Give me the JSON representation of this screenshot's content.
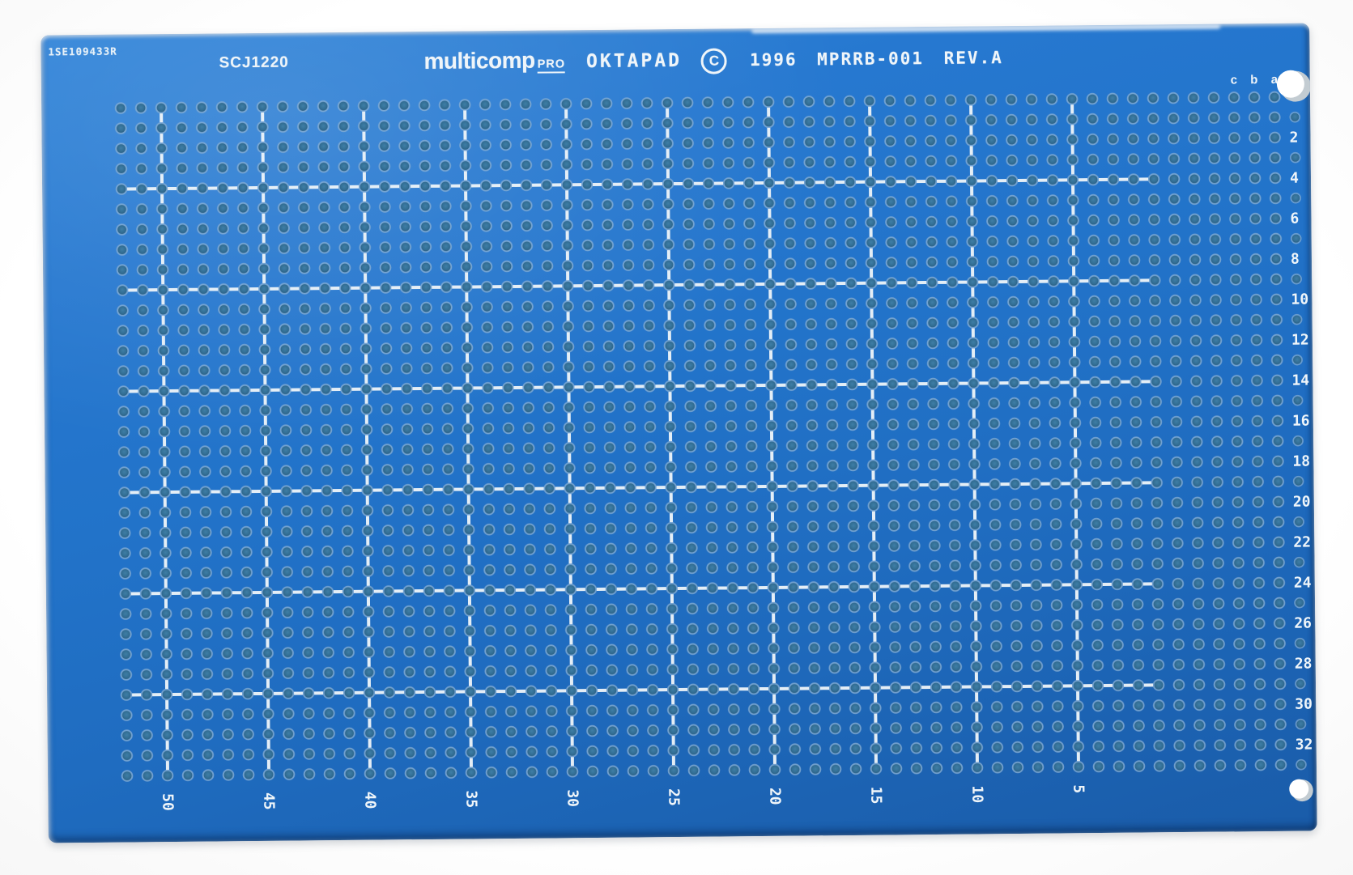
{
  "board": {
    "serial": "1SE109433R",
    "part_number": "SCJ1220",
    "brand": {
      "name": "multicomp",
      "suffix": "PRO"
    },
    "product": "OKTAPAD",
    "copyright": "C",
    "info": "1996 MPRRB-001 REV.A",
    "column_letters": [
      "c",
      "b",
      "a"
    ],
    "row_numbers": [
      2,
      4,
      6,
      8,
      10,
      12,
      14,
      16,
      18,
      20,
      22,
      24,
      26,
      28,
      30,
      32
    ],
    "column_numbers": [
      50,
      45,
      40,
      35,
      30,
      25,
      20,
      15,
      10,
      5
    ]
  },
  "grid": {
    "columns": 59,
    "rows": 34
  },
  "colors": {
    "board_blue": "#2273c9",
    "hole_inner": "#336f95",
    "hole_rim": "#86aed3",
    "silkscreen": "#eff5f9",
    "background": "#fdfdfd"
  }
}
